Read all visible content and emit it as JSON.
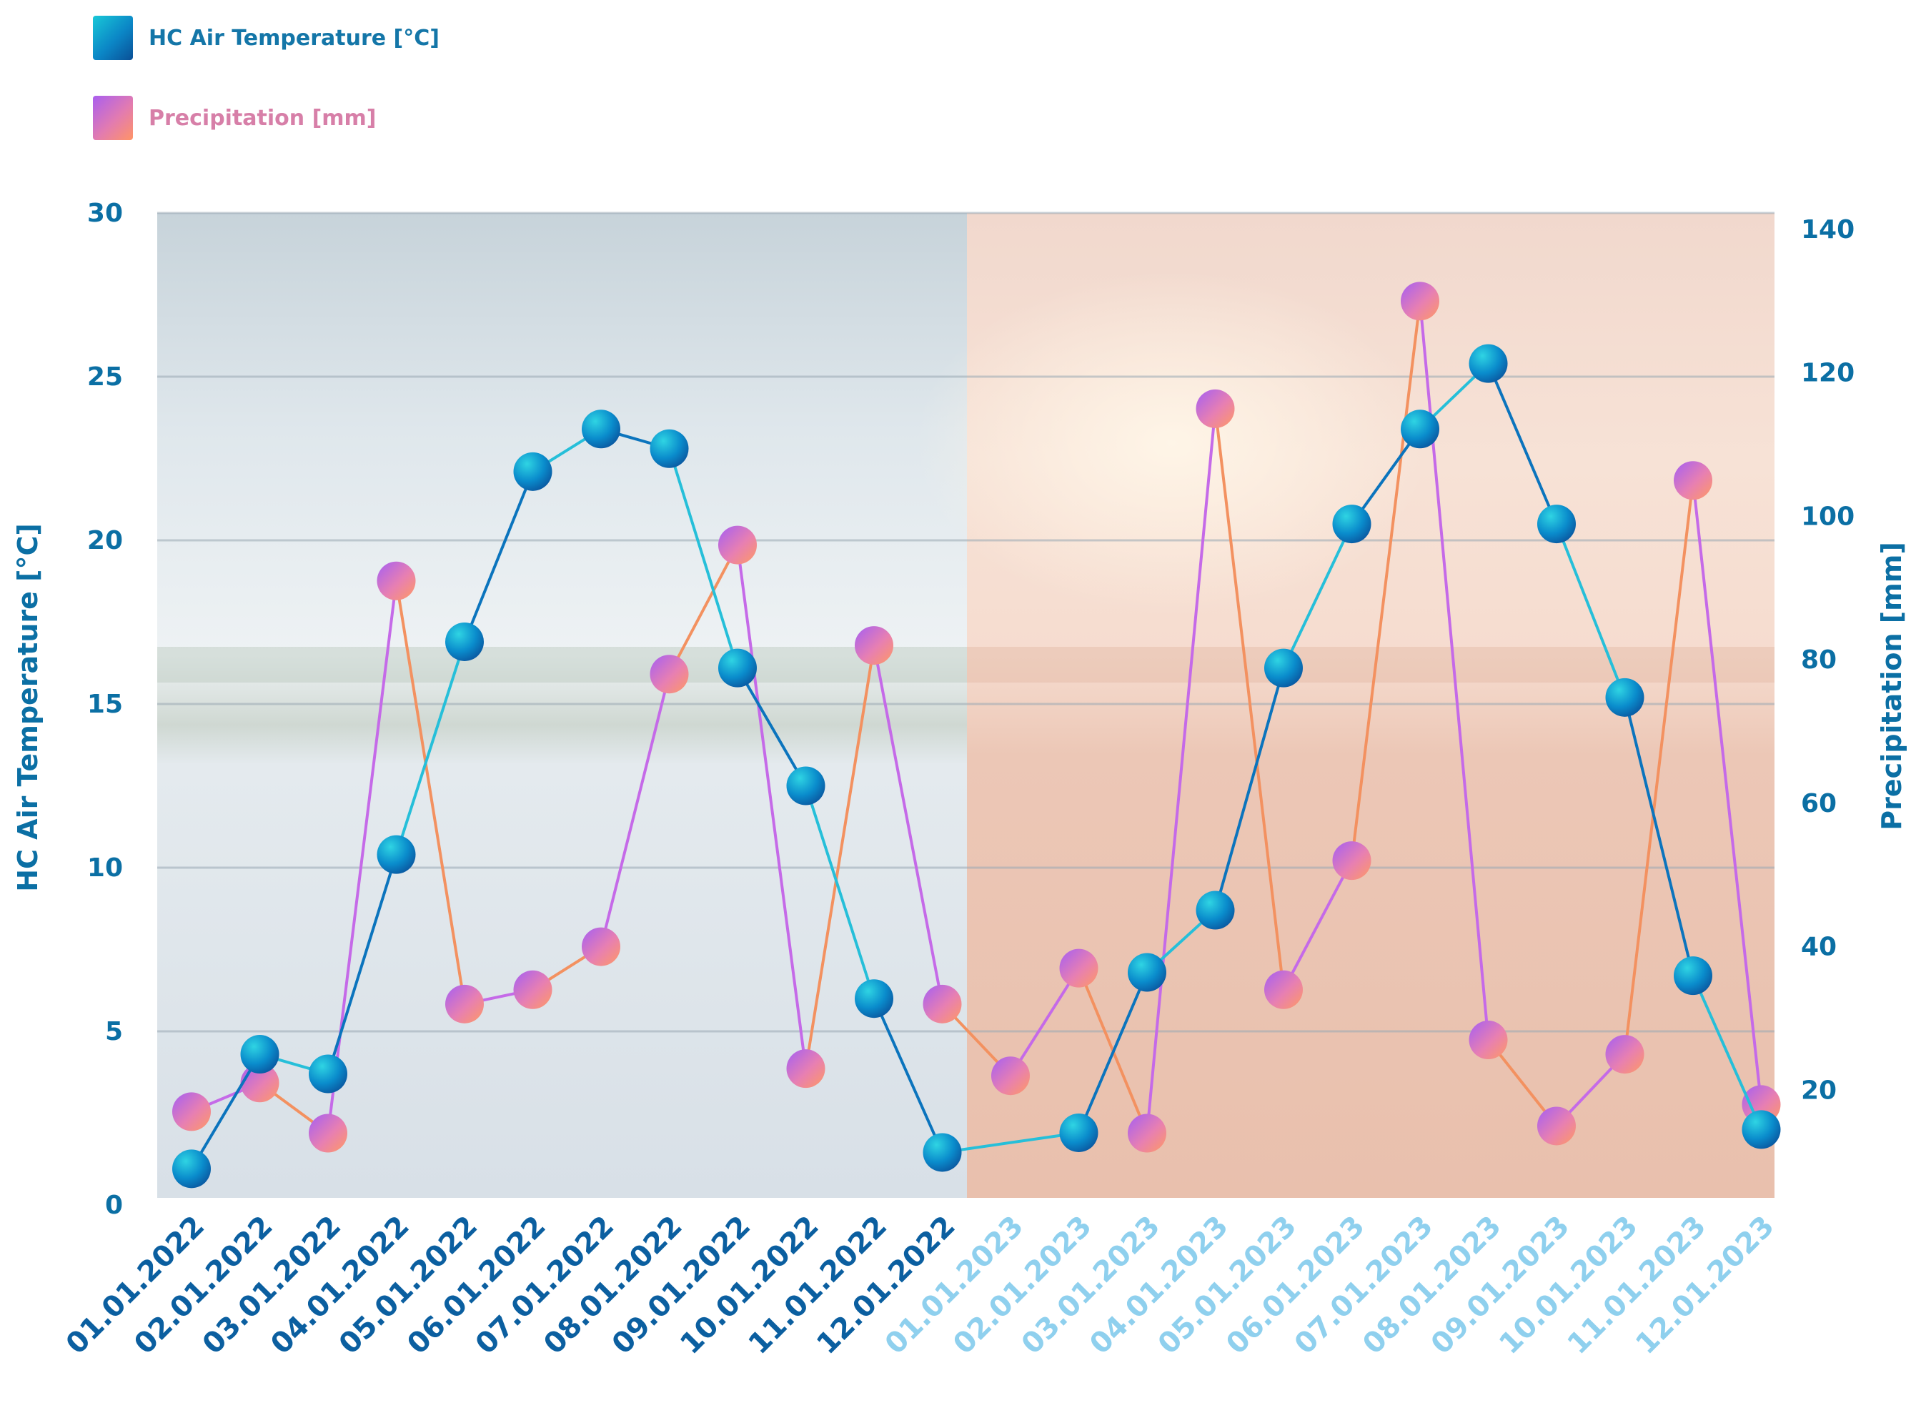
{
  "legend": {
    "temperature": "HC Air Temperature [°C]",
    "precipitation": "Precipitation [mm]"
  },
  "colors": {
    "temperature": "#0b86c6",
    "precipitation": "#e27bb0",
    "axis_text": "#0b6fa4",
    "label_2022": "#0b5fa0",
    "label_2023": "#8fd0ee",
    "gridline": "#9aa9b4"
  },
  "chart_data": {
    "type": "line",
    "title": "",
    "xlabel": "",
    "ylabel": "HC Air Temperature [°C]",
    "y2label": "Precipitation [mm]",
    "ylim": [
      0,
      30
    ],
    "y2lim": [
      0,
      140
    ],
    "yticks": [
      "0",
      "5",
      "10",
      "15",
      "20",
      "25",
      "30"
    ],
    "y2ticks": [
      "20",
      "40",
      "60",
      "80",
      "100",
      "120",
      "140"
    ],
    "grid": true,
    "legend_position": "top-left",
    "categories": [
      "01.01.2022",
      "02.01.2022",
      "03.01.2022",
      "04.01.2022",
      "05.01.2022",
      "06.01.2022",
      "07.01.2022",
      "08.01.2022",
      "09.01.2022",
      "10.01.2022",
      "11.01.2022",
      "12.01.2022",
      "01.01.2023",
      "02.01.2023",
      "03.01.2023",
      "04.01.2023",
      "05.01.2023",
      "06.01.2023",
      "07.01.2023",
      "08.01.2023",
      "09.01.2023",
      "10.01.2023",
      "11.01.2023",
      "12.01.2023"
    ],
    "series": [
      {
        "name": "HC Air Temperature [°C]",
        "axis": "left",
        "points": [
          {
            "x": "01.01.2022",
            "y": 0.8
          },
          {
            "x": "02.01.2022",
            "y": 4.3
          },
          {
            "x": "03.01.2022",
            "y": 3.7
          },
          {
            "x": "04.01.2022",
            "y": 10.4
          },
          {
            "x": "05.01.2022",
            "y": 16.9
          },
          {
            "x": "06.01.2022",
            "y": 22.1
          },
          {
            "x": "07.01.2022",
            "y": 23.4
          },
          {
            "x": "08.01.2022",
            "y": 22.8
          },
          {
            "x": "09.01.2022",
            "y": 16.1
          },
          {
            "x": "10.01.2022",
            "y": 12.5
          },
          {
            "x": "11.01.2022",
            "y": 6.0
          },
          {
            "x": "12.01.2022",
            "y": 1.3
          },
          {
            "x": "02.01.2023",
            "y": 1.9
          },
          {
            "x": "03.01.2023",
            "y": 6.8
          },
          {
            "x": "04.01.2023",
            "y": 8.7
          },
          {
            "x": "05.01.2023",
            "y": 16.1
          },
          {
            "x": "06.01.2023",
            "y": 20.5
          },
          {
            "x": "07.01.2023",
            "y": 23.4
          },
          {
            "x": "08.01.2023",
            "y": 25.4
          },
          {
            "x": "09.01.2023",
            "y": 20.5
          },
          {
            "x": "10.01.2023",
            "y": 15.2
          },
          {
            "x": "11.01.2023",
            "y": 6.7
          },
          {
            "x": "12.01.2023",
            "y": 2.0
          }
        ]
      },
      {
        "name": "Precipitation [mm]",
        "axis": "right",
        "points": [
          {
            "x": "01.01.2022",
            "y": 17
          },
          {
            "x": "02.01.2022",
            "y": 21
          },
          {
            "x": "03.01.2022",
            "y": 14
          },
          {
            "x": "04.01.2022",
            "y": 91
          },
          {
            "x": "05.01.2022",
            "y": 32
          },
          {
            "x": "06.01.2022",
            "y": 34
          },
          {
            "x": "07.01.2022",
            "y": 40
          },
          {
            "x": "08.01.2022",
            "y": 78
          },
          {
            "x": "09.01.2022",
            "y": 96
          },
          {
            "x": "10.01.2022",
            "y": 23
          },
          {
            "x": "11.01.2022",
            "y": 82
          },
          {
            "x": "12.01.2022",
            "y": 32
          },
          {
            "x": "01.01.2023",
            "y": 22
          },
          {
            "x": "02.01.2023",
            "y": 37
          },
          {
            "x": "03.01.2023",
            "y": 14
          },
          {
            "x": "04.01.2023",
            "y": 115
          },
          {
            "x": "05.01.2023",
            "y": 34
          },
          {
            "x": "06.01.2023",
            "y": 52
          },
          {
            "x": "07.01.2023",
            "y": 130
          },
          {
            "x": "08.01.2023",
            "y": 27
          },
          {
            "x": "09.01.2023",
            "y": 15
          },
          {
            "x": "10.01.2023",
            "y": 25
          },
          {
            "x": "11.01.2023",
            "y": 105
          },
          {
            "x": "12.01.2023",
            "y": 18
          }
        ]
      }
    ]
  }
}
